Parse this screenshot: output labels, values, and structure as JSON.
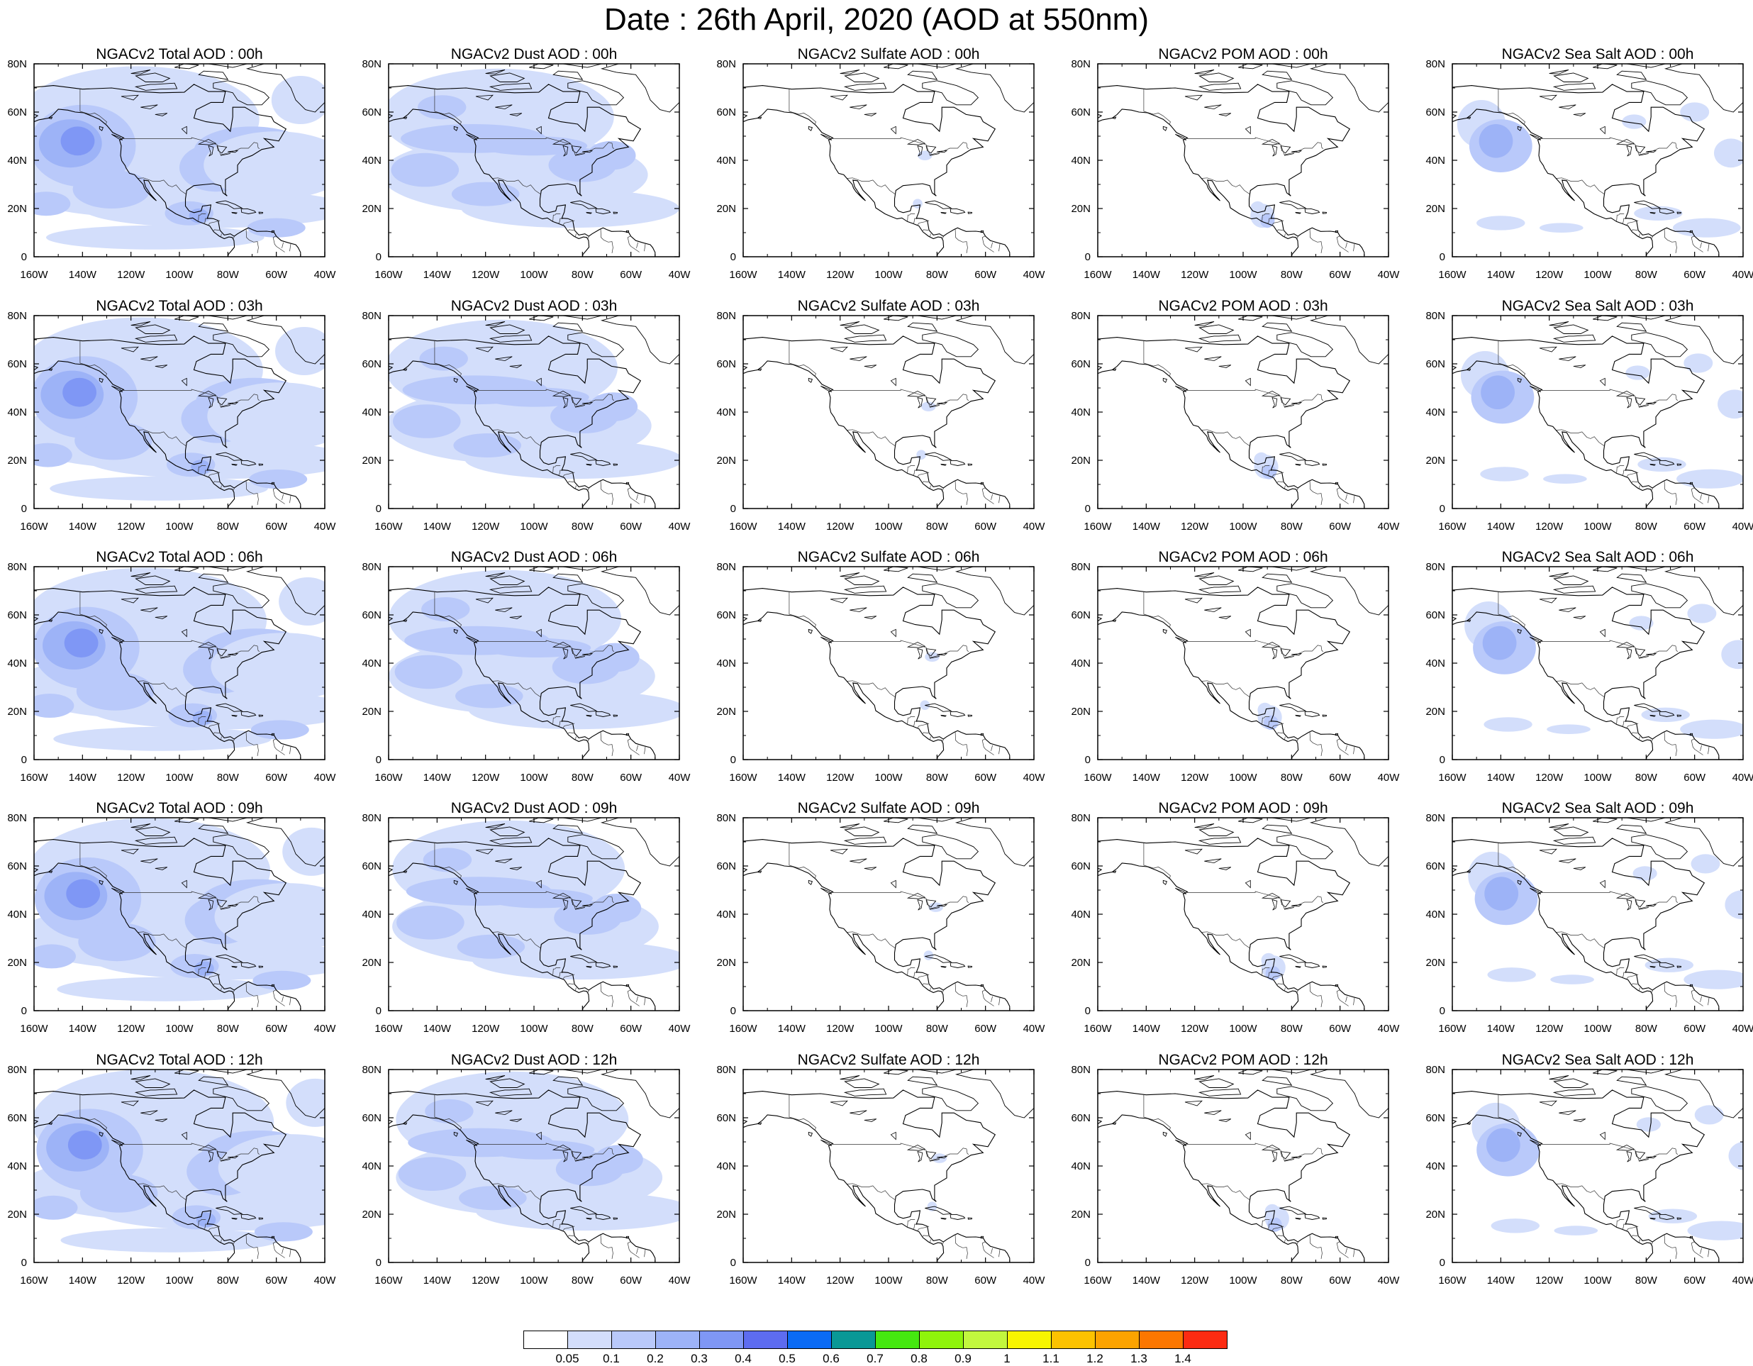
{
  "title": "Date : 26th April, 2020 (AOD at 550nm)",
  "x_tick_labels": [
    "160W",
    "140W",
    "120W",
    "100W",
    "80W",
    "60W",
    "40W"
  ],
  "y_tick_labels": [
    "0",
    "20N",
    "40N",
    "60N",
    "80N"
  ],
  "colorbar": {
    "labels": [
      "0.05",
      "0.1",
      "0.2",
      "0.3",
      "0.4",
      "0.5",
      "0.6",
      "0.7",
      "0.8",
      "0.9",
      "1",
      "1.1",
      "1.2",
      "1.3",
      "1.4"
    ],
    "colors": [
      "#ffffff",
      "#d3defb",
      "#b9c9fa",
      "#9db3f7",
      "#7f97f5",
      "#5d6cf0",
      "#0b6bf5",
      "#0a9896",
      "#45e810",
      "#8ff40c",
      "#c2f73e",
      "#f7f500",
      "#fcc200",
      "#fca300",
      "#fc7700",
      "#fc2b12"
    ]
  },
  "panels": [
    {
      "title": "NGACv2 Total AOD : 00h",
      "product": "total"
    },
    {
      "title": "NGACv2 Dust AOD : 00h",
      "product": "dust"
    },
    {
      "title": "NGACv2 Sulfate AOD : 00h",
      "product": "sulfate"
    },
    {
      "title": "NGACv2 POM AOD : 00h",
      "product": "pom"
    },
    {
      "title": "NGACv2 Sea Salt AOD : 00h",
      "product": "seasalt"
    },
    {
      "title": "NGACv2 Total AOD : 03h",
      "product": "total"
    },
    {
      "title": "NGACv2 Dust AOD : 03h",
      "product": "dust"
    },
    {
      "title": "NGACv2 Sulfate AOD : 03h",
      "product": "sulfate"
    },
    {
      "title": "NGACv2 POM AOD : 03h",
      "product": "pom"
    },
    {
      "title": "NGACv2 Sea Salt AOD : 03h",
      "product": "seasalt"
    },
    {
      "title": "NGACv2 Total AOD : 06h",
      "product": "total"
    },
    {
      "title": "NGACv2 Dust AOD : 06h",
      "product": "dust"
    },
    {
      "title": "NGACv2 Sulfate AOD : 06h",
      "product": "sulfate"
    },
    {
      "title": "NGACv2 POM AOD : 06h",
      "product": "pom"
    },
    {
      "title": "NGACv2 Sea Salt AOD : 06h",
      "product": "seasalt"
    },
    {
      "title": "NGACv2 Total AOD : 09h",
      "product": "total"
    },
    {
      "title": "NGACv2 Dust AOD : 09h",
      "product": "dust"
    },
    {
      "title": "NGACv2 Sulfate AOD : 09h",
      "product": "sulfate"
    },
    {
      "title": "NGACv2 POM AOD : 09h",
      "product": "pom"
    },
    {
      "title": "NGACv2 Sea Salt  AOD : 09h",
      "product": "seasalt"
    },
    {
      "title": "NGACv2 Total AOD  : 12h",
      "product": "total"
    },
    {
      "title": "NGACv2 Dust AOD : 12h",
      "product": "dust"
    },
    {
      "title": "NGACv2 Sulfate AOD : 12h",
      "product": "sulfate"
    },
    {
      "title": "NGACv2 POM  AOD : 12h",
      "product": "pom"
    },
    {
      "title": "NGACv2 Sea Salt  AOD : 12h",
      "product": "seasalt"
    }
  ]
}
